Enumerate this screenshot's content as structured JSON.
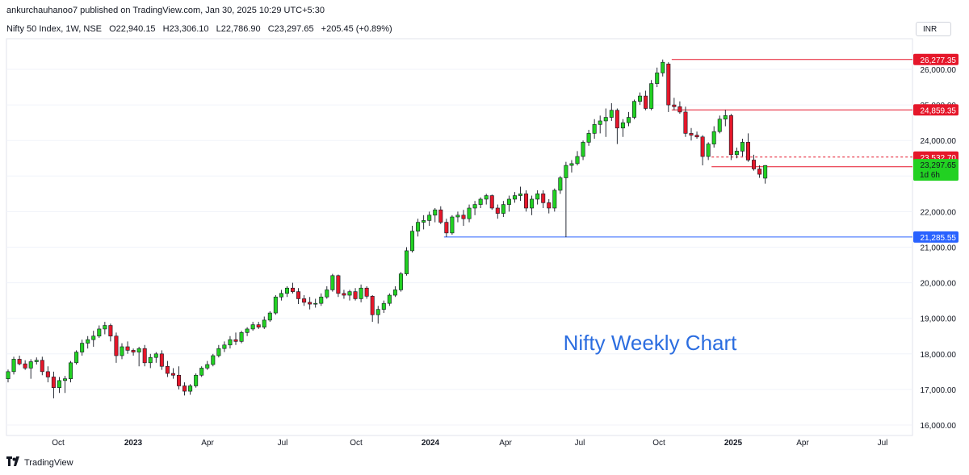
{
  "header": {
    "published": "ankurchauhanoo7 published on TradingView.com, Jan 30, 2025 10:29 UTC+5:30",
    "symbol": "Nifty 50 Index, 1W, NSE",
    "open": "O22,940.15",
    "high": "H23,306.10",
    "low": "L22,786.90",
    "close": "C23,297.65",
    "change": "+205.45 (+0.89%)",
    "currency": "INR"
  },
  "footer": {
    "logo_icon": "tradingview-logo-icon",
    "brand": "TradingView"
  },
  "colors": {
    "up": "#22d122",
    "down": "#e5172a",
    "line_red": "#e5172a",
    "line_blue": "#2962ff",
    "annotation": "#2b6de0",
    "grid": "#f0f3fa",
    "axis_text": "#131722"
  },
  "chart_data": {
    "type": "candlestick",
    "title": "Nifty Weekly Chart",
    "xlabel": "",
    "ylabel": "",
    "ylim": [
      15800,
      26500
    ],
    "grid": true,
    "y_ticks": [
      "16,000.00",
      "17,000.00",
      "18,000.00",
      "19,000.00",
      "20,000.00",
      "21,000.00",
      "22,000.00",
      "24,000.00",
      "25,000.00",
      "26,000.00"
    ],
    "x_ticks": [
      "Oct",
      "2023",
      "Apr",
      "Jul",
      "Oct",
      "2024",
      "Apr",
      "Jul",
      "Oct",
      "2025",
      "Apr",
      "Jul"
    ],
    "x_ticks_bold": [
      "2023",
      "2024",
      "2025"
    ],
    "candles": [
      {
        "o": 17300,
        "h": 17560,
        "l": 17200,
        "c": 17500
      },
      {
        "o": 17500,
        "h": 17920,
        "l": 17420,
        "c": 17850
      },
      {
        "o": 17850,
        "h": 17950,
        "l": 17680,
        "c": 17720
      },
      {
        "o": 17720,
        "h": 17820,
        "l": 17550,
        "c": 17600
      },
      {
        "o": 17600,
        "h": 17850,
        "l": 17300,
        "c": 17780
      },
      {
        "o": 17780,
        "h": 17900,
        "l": 17700,
        "c": 17820
      },
      {
        "o": 17820,
        "h": 17920,
        "l": 17400,
        "c": 17500
      },
      {
        "o": 17500,
        "h": 17650,
        "l": 17200,
        "c": 17350
      },
      {
        "o": 17350,
        "h": 17500,
        "l": 16750,
        "c": 17050
      },
      {
        "o": 17050,
        "h": 17350,
        "l": 16900,
        "c": 17250
      },
      {
        "o": 17250,
        "h": 17380,
        "l": 16900,
        "c": 17300
      },
      {
        "o": 17300,
        "h": 17800,
        "l": 17200,
        "c": 17750
      },
      {
        "o": 17750,
        "h": 18100,
        "l": 17700,
        "c": 18050
      },
      {
        "o": 18050,
        "h": 18400,
        "l": 17950,
        "c": 18300
      },
      {
        "o": 18300,
        "h": 18500,
        "l": 18150,
        "c": 18400
      },
      {
        "o": 18400,
        "h": 18650,
        "l": 18200,
        "c": 18500
      },
      {
        "o": 18500,
        "h": 18800,
        "l": 18450,
        "c": 18700
      },
      {
        "o": 18700,
        "h": 18900,
        "l": 18550,
        "c": 18800
      },
      {
        "o": 18800,
        "h": 18850,
        "l": 18350,
        "c": 18500
      },
      {
        "o": 18500,
        "h": 18600,
        "l": 17750,
        "c": 17950
      },
      {
        "o": 17950,
        "h": 18300,
        "l": 17850,
        "c": 18200
      },
      {
        "o": 18200,
        "h": 18350,
        "l": 18000,
        "c": 18100
      },
      {
        "o": 18100,
        "h": 18150,
        "l": 17950,
        "c": 18050
      },
      {
        "o": 18050,
        "h": 18200,
        "l": 17650,
        "c": 18150
      },
      {
        "o": 18150,
        "h": 18250,
        "l": 17650,
        "c": 17750
      },
      {
        "o": 17750,
        "h": 18000,
        "l": 17600,
        "c": 17900
      },
      {
        "o": 17900,
        "h": 18050,
        "l": 17750,
        "c": 18000
      },
      {
        "o": 18000,
        "h": 18100,
        "l": 17550,
        "c": 17650
      },
      {
        "o": 17650,
        "h": 17800,
        "l": 17350,
        "c": 17450
      },
      {
        "o": 17450,
        "h": 17600,
        "l": 17300,
        "c": 17400
      },
      {
        "o": 17400,
        "h": 17650,
        "l": 17000,
        "c": 17100
      },
      {
        "o": 17100,
        "h": 17200,
        "l": 16830,
        "c": 16950
      },
      {
        "o": 16950,
        "h": 17150,
        "l": 16850,
        "c": 17100
      },
      {
        "o": 17100,
        "h": 17450,
        "l": 17050,
        "c": 17400
      },
      {
        "o": 17400,
        "h": 17650,
        "l": 17350,
        "c": 17600
      },
      {
        "o": 17600,
        "h": 17800,
        "l": 17550,
        "c": 17700
      },
      {
        "o": 17700,
        "h": 18000,
        "l": 17650,
        "c": 17950
      },
      {
        "o": 17950,
        "h": 18250,
        "l": 17900,
        "c": 18150
      },
      {
        "o": 18150,
        "h": 18350,
        "l": 18050,
        "c": 18250
      },
      {
        "o": 18250,
        "h": 18500,
        "l": 18150,
        "c": 18400
      },
      {
        "o": 18400,
        "h": 18600,
        "l": 18250,
        "c": 18350
      },
      {
        "o": 18350,
        "h": 18650,
        "l": 18300,
        "c": 18600
      },
      {
        "o": 18600,
        "h": 18750,
        "l": 18500,
        "c": 18700
      },
      {
        "o": 18700,
        "h": 18900,
        "l": 18650,
        "c": 18820
      },
      {
        "o": 18820,
        "h": 18900,
        "l": 18700,
        "c": 18750
      },
      {
        "o": 18750,
        "h": 19050,
        "l": 18700,
        "c": 18950
      },
      {
        "o": 18950,
        "h": 19200,
        "l": 18900,
        "c": 19150
      },
      {
        "o": 19150,
        "h": 19650,
        "l": 19100,
        "c": 19600
      },
      {
        "o": 19600,
        "h": 19800,
        "l": 19500,
        "c": 19700
      },
      {
        "o": 19700,
        "h": 19900,
        "l": 19600,
        "c": 19850
      },
      {
        "o": 19850,
        "h": 20000,
        "l": 19700,
        "c": 19750
      },
      {
        "o": 19750,
        "h": 19850,
        "l": 19400,
        "c": 19550
      },
      {
        "o": 19550,
        "h": 19650,
        "l": 19350,
        "c": 19450
      },
      {
        "o": 19450,
        "h": 19600,
        "l": 19250,
        "c": 19400
      },
      {
        "o": 19400,
        "h": 19550,
        "l": 19300,
        "c": 19420
      },
      {
        "o": 19420,
        "h": 19700,
        "l": 19350,
        "c": 19600
      },
      {
        "o": 19600,
        "h": 19900,
        "l": 19550,
        "c": 19800
      },
      {
        "o": 19800,
        "h": 20250,
        "l": 19750,
        "c": 20200
      },
      {
        "o": 20200,
        "h": 20230,
        "l": 19600,
        "c": 19700
      },
      {
        "o": 19700,
        "h": 19800,
        "l": 19550,
        "c": 19650
      },
      {
        "o": 19650,
        "h": 19800,
        "l": 19500,
        "c": 19750
      },
      {
        "o": 19750,
        "h": 19850,
        "l": 19500,
        "c": 19550
      },
      {
        "o": 19550,
        "h": 19950,
        "l": 19450,
        "c": 19850
      },
      {
        "o": 19850,
        "h": 19900,
        "l": 19550,
        "c": 19620
      },
      {
        "o": 19620,
        "h": 19650,
        "l": 18900,
        "c": 19100
      },
      {
        "o": 19100,
        "h": 19350,
        "l": 18850,
        "c": 19250
      },
      {
        "o": 19250,
        "h": 19500,
        "l": 19150,
        "c": 19420
      },
      {
        "o": 19420,
        "h": 19700,
        "l": 19350,
        "c": 19650
      },
      {
        "o": 19650,
        "h": 19900,
        "l": 19600,
        "c": 19800
      },
      {
        "o": 19800,
        "h": 20300,
        "l": 19750,
        "c": 20250
      },
      {
        "o": 20250,
        "h": 21000,
        "l": 20200,
        "c": 20900
      },
      {
        "o": 20900,
        "h": 21600,
        "l": 20850,
        "c": 21450
      },
      {
        "o": 21450,
        "h": 21800,
        "l": 21300,
        "c": 21700
      },
      {
        "o": 21700,
        "h": 21900,
        "l": 21500,
        "c": 21750
      },
      {
        "o": 21750,
        "h": 22000,
        "l": 21600,
        "c": 21900
      },
      {
        "o": 21900,
        "h": 22100,
        "l": 21700,
        "c": 22050
      },
      {
        "o": 22050,
        "h": 22150,
        "l": 21650,
        "c": 21700
      },
      {
        "o": 21700,
        "h": 21800,
        "l": 21285.55,
        "c": 21400
      },
      {
        "o": 21400,
        "h": 21900,
        "l": 21350,
        "c": 21850
      },
      {
        "o": 21850,
        "h": 22000,
        "l": 21700,
        "c": 21900
      },
      {
        "o": 21900,
        "h": 22050,
        "l": 21600,
        "c": 21800
      },
      {
        "o": 21800,
        "h": 22200,
        "l": 21700,
        "c": 22100
      },
      {
        "o": 22100,
        "h": 22300,
        "l": 21900,
        "c": 22200
      },
      {
        "o": 22200,
        "h": 22400,
        "l": 22100,
        "c": 22350
      },
      {
        "o": 22350,
        "h": 22500,
        "l": 22200,
        "c": 22450
      },
      {
        "o": 22450,
        "h": 22480,
        "l": 22050,
        "c": 22100
      },
      {
        "o": 22100,
        "h": 22200,
        "l": 21800,
        "c": 21950
      },
      {
        "o": 21950,
        "h": 22300,
        "l": 21850,
        "c": 22200
      },
      {
        "o": 22200,
        "h": 22450,
        "l": 22000,
        "c": 22350
      },
      {
        "o": 22350,
        "h": 22550,
        "l": 22250,
        "c": 22450
      },
      {
        "o": 22450,
        "h": 22700,
        "l": 22300,
        "c": 22500
      },
      {
        "o": 22500,
        "h": 22600,
        "l": 22000,
        "c": 22100
      },
      {
        "o": 22100,
        "h": 22450,
        "l": 21900,
        "c": 22350
      },
      {
        "o": 22350,
        "h": 22600,
        "l": 22200,
        "c": 22500
      },
      {
        "o": 22500,
        "h": 22600,
        "l": 22100,
        "c": 22250
      },
      {
        "o": 22250,
        "h": 22350,
        "l": 21950,
        "c": 22100
      },
      {
        "o": 22100,
        "h": 22650,
        "l": 22000,
        "c": 22600
      },
      {
        "o": 22600,
        "h": 23000,
        "l": 22500,
        "c": 22950
      },
      {
        "o": 22950,
        "h": 23400,
        "l": 21281.45,
        "c": 23300
      },
      {
        "o": 23300,
        "h": 23450,
        "l": 23100,
        "c": 23350
      },
      {
        "o": 23350,
        "h": 23700,
        "l": 23300,
        "c": 23550
      },
      {
        "o": 23550,
        "h": 24000,
        "l": 23450,
        "c": 23950
      },
      {
        "o": 23950,
        "h": 24300,
        "l": 23850,
        "c": 24200
      },
      {
        "o": 24200,
        "h": 24600,
        "l": 24050,
        "c": 24450
      },
      {
        "o": 24450,
        "h": 24700,
        "l": 24200,
        "c": 24550
      },
      {
        "o": 24550,
        "h": 24900,
        "l": 24100,
        "c": 24650
      },
      {
        "o": 24650,
        "h": 25050,
        "l": 24550,
        "c": 24850
      },
      {
        "o": 24850,
        "h": 24900,
        "l": 23900,
        "c": 24350
      },
      {
        "o": 24350,
        "h": 24600,
        "l": 24100,
        "c": 24500
      },
      {
        "o": 24500,
        "h": 24800,
        "l": 24400,
        "c": 24650
      },
      {
        "o": 24650,
        "h": 25150,
        "l": 24600,
        "c": 25100
      },
      {
        "o": 25100,
        "h": 25350,
        "l": 25000,
        "c": 25250
      },
      {
        "o": 25250,
        "h": 25400,
        "l": 24850,
        "c": 24900
      },
      {
        "o": 24900,
        "h": 25700,
        "l": 24850,
        "c": 25600
      },
      {
        "o": 25600,
        "h": 26050,
        "l": 25500,
        "c": 25900
      },
      {
        "o": 25900,
        "h": 26277.35,
        "l": 25800,
        "c": 26200
      },
      {
        "o": 26150,
        "h": 26200,
        "l": 24800,
        "c": 25000
      },
      {
        "o": 25000,
        "h": 25200,
        "l": 24850,
        "c": 24950
      },
      {
        "o": 24950,
        "h": 25100,
        "l": 24750,
        "c": 24800
      },
      {
        "o": 24800,
        "h": 24950,
        "l": 24100,
        "c": 24200
      },
      {
        "o": 24200,
        "h": 24350,
        "l": 24000,
        "c": 24150
      },
      {
        "o": 24150,
        "h": 24250,
        "l": 24050,
        "c": 24100
      },
      {
        "o": 24100,
        "h": 24150,
        "l": 23300,
        "c": 23550
      },
      {
        "o": 23550,
        "h": 23950,
        "l": 23450,
        "c": 23900
      },
      {
        "o": 23900,
        "h": 24400,
        "l": 23800,
        "c": 24250
      },
      {
        "o": 24250,
        "h": 24700,
        "l": 24200,
        "c": 24600
      },
      {
        "o": 24600,
        "h": 24859.35,
        "l": 24400,
        "c": 24700
      },
      {
        "o": 24700,
        "h": 24750,
        "l": 23450,
        "c": 23600
      },
      {
        "o": 23600,
        "h": 23800,
        "l": 23500,
        "c": 23700
      },
      {
        "o": 23700,
        "h": 24050,
        "l": 23550,
        "c": 23950
      },
      {
        "o": 23950,
        "h": 24200,
        "l": 23400,
        "c": 23450
      },
      {
        "o": 23450,
        "h": 23600,
        "l": 23150,
        "c": 23200
      },
      {
        "o": 23200,
        "h": 23300,
        "l": 22950,
        "c": 23050
      },
      {
        "o": 22940.15,
        "h": 23306.1,
        "l": 22786.9,
        "c": 23297.65
      }
    ],
    "levels": [
      {
        "label": "26,277.35",
        "value": 26277.35,
        "color": "red",
        "from_candle": 117,
        "style": "solid"
      },
      {
        "label": "24,859.35",
        "value": 24859.35,
        "color": "red",
        "from_candle": 117,
        "style": "solid"
      },
      {
        "label": "23,532.70",
        "value": 23532.7,
        "color": "red",
        "from_candle": 124,
        "style": "dashed"
      },
      {
        "label": "23,263.15",
        "value": 23263.15,
        "color": "red",
        "from_candle": 124,
        "style": "solid"
      },
      {
        "label": "21,285.55",
        "value": 21285.55,
        "color": "blue",
        "from_candle": 77,
        "style": "solid"
      }
    ],
    "price_tags": [
      {
        "label": "26,277.35",
        "value": 26277.35,
        "bg": "#e5172a",
        "fg": "#ffffff"
      },
      {
        "label": "24,859.35",
        "value": 24859.35,
        "bg": "#e5172a",
        "fg": "#ffffff"
      },
      {
        "label": "23,532.70",
        "value": 23532.7,
        "bg": "#e5172a",
        "fg": "#ffffff"
      },
      {
        "label": "23,263.15",
        "value": 23263.15,
        "bg": "#e5172a",
        "fg": "#ffffff"
      },
      {
        "label": "21,285.55",
        "value": 21285.55,
        "bg": "#2962ff",
        "fg": "#ffffff"
      }
    ],
    "current_price": {
      "label": "23,297.65",
      "countdown": "1d 6h",
      "value": 23297.65,
      "bg": "#22d122",
      "fg": "#131722"
    },
    "annotations": [
      {
        "text": "Nifty Weekly Chart"
      }
    ]
  }
}
